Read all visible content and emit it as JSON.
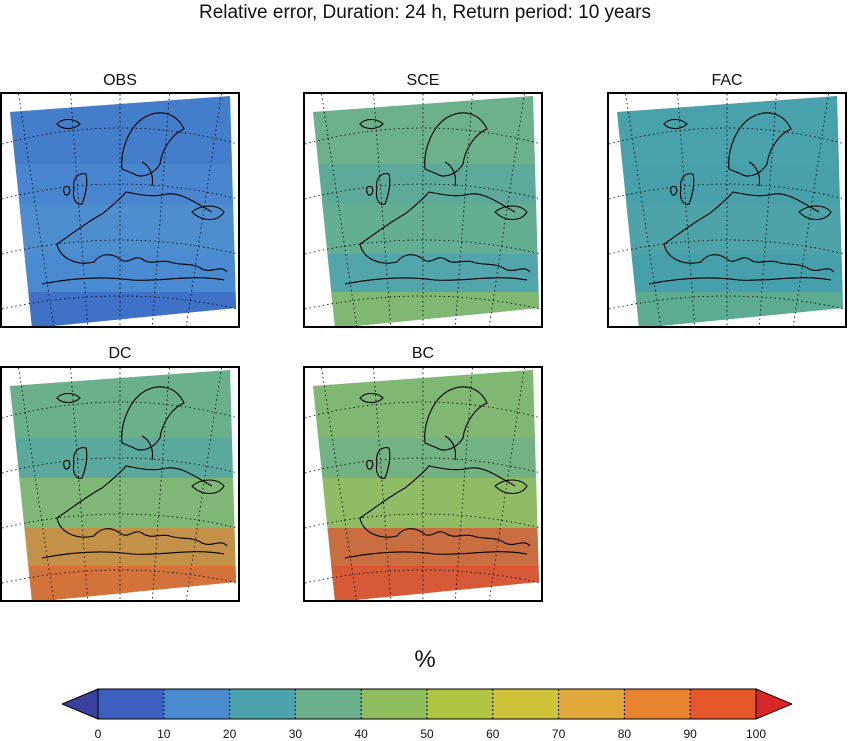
{
  "title": "Relative error, Duration: 24 h, Return period: 10 years",
  "panels": [
    {
      "label": "OBS",
      "base": "#4a86cf",
      "accents": [
        "#3f79c9",
        "#5295d0",
        "#4a8bd0",
        "#3d6fc4"
      ]
    },
    {
      "label": "SCE",
      "base": "#5daa9a",
      "accents": [
        "#79b67e",
        "#6ab08c",
        "#4ea3b0",
        "#86bb6c"
      ]
    },
    {
      "label": "FAC",
      "base": "#48a0aa",
      "accents": [
        "#4aa2ac",
        "#52a6a4",
        "#46a0ab",
        "#62ad8f"
      ]
    },
    {
      "label": "DC",
      "base": "#5aa99c",
      "accents": [
        "#79b67c",
        "#9ec257",
        "#e8892e",
        "#e86a2b"
      ]
    },
    {
      "label": "BC",
      "base": "#73b283",
      "accents": [
        "#8abb66",
        "#a8c44f",
        "#e6572a",
        "#e84a2a"
      ]
    }
  ],
  "colorbar": {
    "unit": "%",
    "ticks": [
      "0",
      "10",
      "20",
      "30",
      "40",
      "50",
      "60",
      "70",
      "80",
      "90",
      "100"
    ],
    "colors": [
      "#3d5fc0",
      "#4a8bd0",
      "#4aa3ad",
      "#6ab08c",
      "#8fbe5e",
      "#b2c444",
      "#cfc33a",
      "#e2a93a",
      "#e8842f",
      "#e6572a"
    ],
    "under_color": "#3b3f9e",
    "over_color": "#d8262a"
  }
}
